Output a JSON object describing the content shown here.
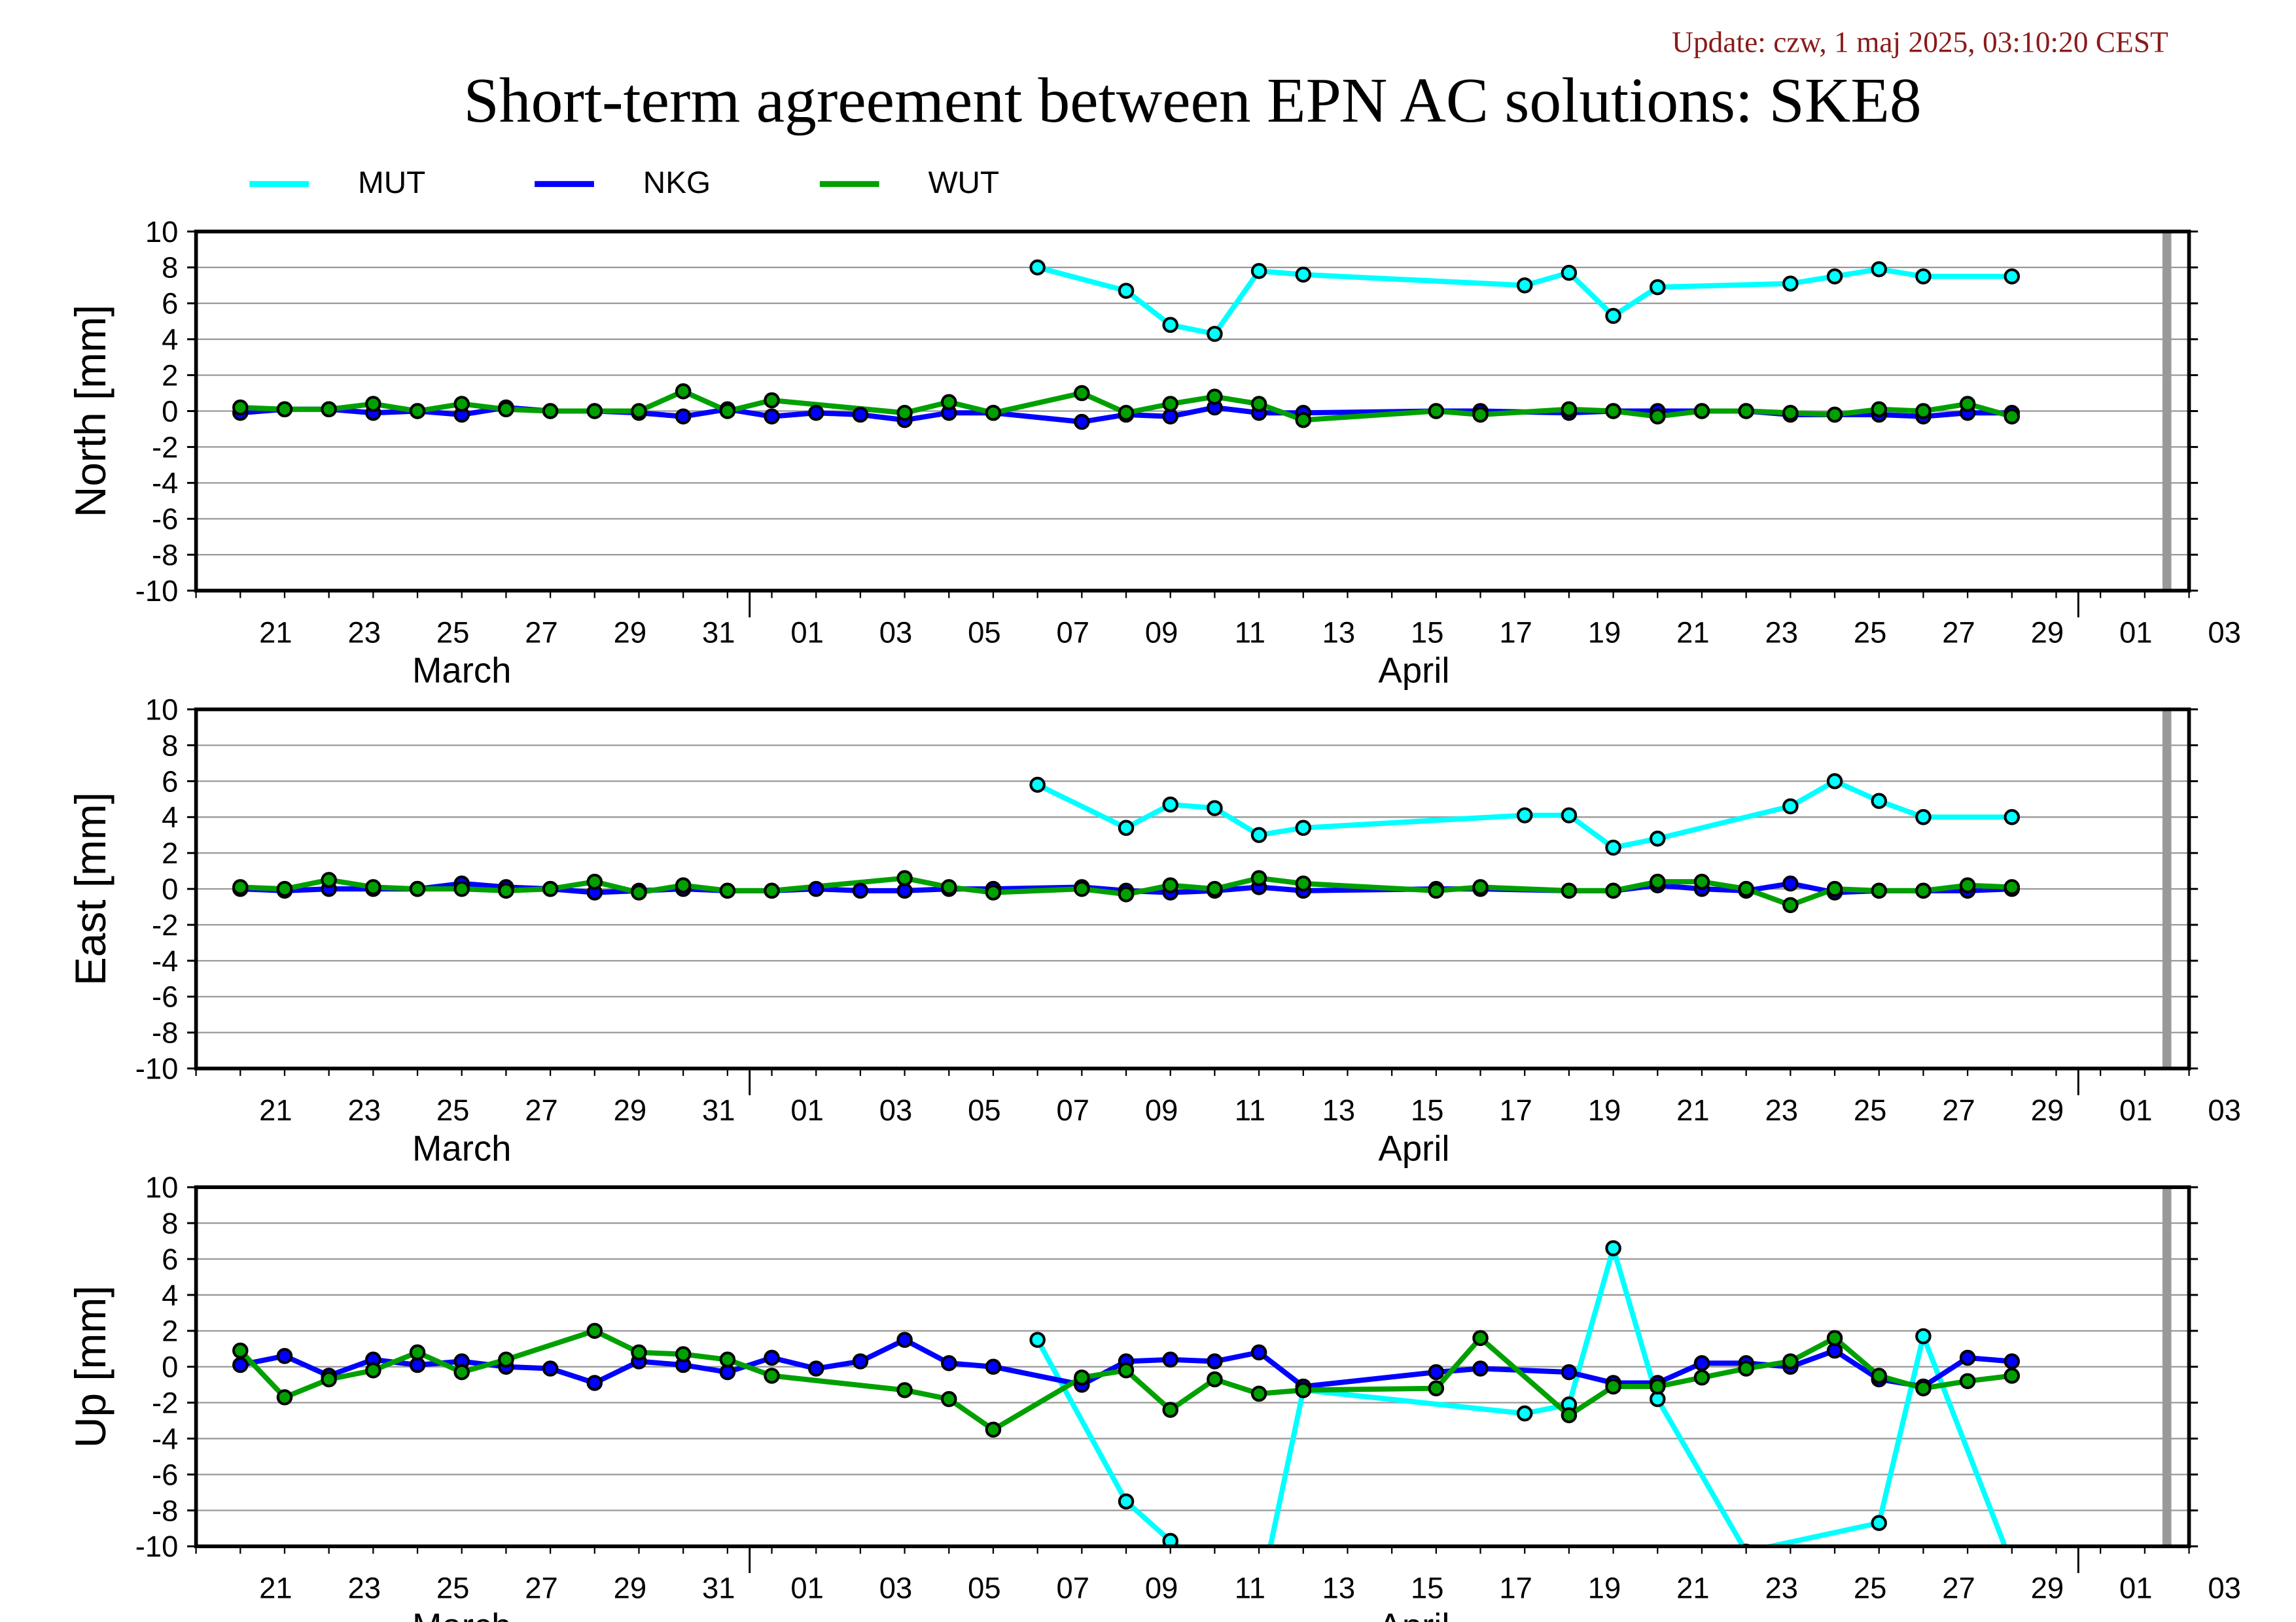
{
  "header": {
    "update": "Update: czw, 1 maj 2025, 03:10:20 CEST",
    "title": "Short-term agreement between EPN AC solutions: SKE8"
  },
  "legend": [
    {
      "name": "MUT",
      "color": "#00ffff"
    },
    {
      "name": "NKG",
      "color": "#0000ff"
    },
    {
      "name": "WUT",
      "color": "#00a000"
    }
  ],
  "colors": {
    "marker_fill": "#40b8ff",
    "gap_bar": "#999999",
    "grid": "#999999"
  },
  "chart_data": [
    {
      "type": "line",
      "ylabel": "North [mm]",
      "ylim": [
        -10,
        10
      ],
      "yticks": [
        "10",
        "8",
        "6",
        "4",
        "2",
        "0",
        "-2",
        "-4",
        "-6",
        "-8",
        "-10"
      ],
      "xdomain_days_from_mar19": [
        0,
        45
      ],
      "x_tick_labels": [
        "21",
        "23",
        "25",
        "27",
        "29",
        "31",
        "01",
        "03",
        "05",
        "07",
        "09",
        "11",
        "13",
        "15",
        "17",
        "19",
        "21",
        "23",
        "25",
        "27",
        "29",
        "01",
        "03"
      ],
      "month_labels": [
        "March",
        "April"
      ],
      "series": [
        {
          "name": "MUT",
          "color": "#00ffff",
          "x": [
            "2025-04-07",
            "2025-04-09",
            "2025-04-10",
            "2025-04-11",
            "2025-04-12",
            "2025-04-13",
            "2025-04-18",
            "2025-04-19",
            "2025-04-20",
            "2025-04-21",
            "2025-04-24",
            "2025-04-25",
            "2025-04-26",
            "2025-04-27",
            "2025-04-29"
          ],
          "y": [
            8.0,
            6.7,
            4.8,
            4.3,
            7.8,
            7.6,
            7.0,
            7.7,
            5.3,
            6.9,
            7.1,
            7.5,
            7.9,
            7.5,
            7.5
          ]
        },
        {
          "name": "NKG",
          "color": "#0000ff",
          "x": [
            "2025-03-20",
            "2025-03-21",
            "2025-03-22",
            "2025-03-23",
            "2025-03-24",
            "2025-03-25",
            "2025-03-26",
            "2025-03-27",
            "2025-03-28",
            "2025-03-29",
            "2025-03-30",
            "2025-03-31",
            "2025-04-01",
            "2025-04-02",
            "2025-04-03",
            "2025-04-04",
            "2025-04-05",
            "2025-04-06",
            "2025-04-08",
            "2025-04-09",
            "2025-04-10",
            "2025-04-11",
            "2025-04-12",
            "2025-04-13",
            "2025-04-16",
            "2025-04-17",
            "2025-04-19",
            "2025-04-20",
            "2025-04-21",
            "2025-04-22",
            "2025-04-23",
            "2025-04-24",
            "2025-04-25",
            "2025-04-26",
            "2025-04-27",
            "2025-04-28",
            "2025-04-29"
          ],
          "y": [
            -0.1,
            0.1,
            0.1,
            -0.1,
            0.0,
            -0.2,
            0.2,
            0.0,
            0.0,
            -0.1,
            -0.3,
            0.1,
            -0.3,
            -0.1,
            -0.2,
            -0.5,
            -0.1,
            -0.1,
            -0.6,
            -0.2,
            -0.3,
            0.2,
            -0.1,
            -0.1,
            0.0,
            0.0,
            -0.1,
            0.0,
            0.0,
            0.0,
            0.0,
            -0.2,
            -0.2,
            -0.2,
            -0.3,
            -0.1,
            -0.1
          ]
        },
        {
          "name": "WUT",
          "color": "#00a000",
          "x": [
            "2025-03-20",
            "2025-03-21",
            "2025-03-22",
            "2025-03-23",
            "2025-03-24",
            "2025-03-25",
            "2025-03-26",
            "2025-03-27",
            "2025-03-28",
            "2025-03-29",
            "2025-03-30",
            "2025-03-31",
            "2025-04-01",
            "2025-04-04",
            "2025-04-05",
            "2025-04-06",
            "2025-04-08",
            "2025-04-09",
            "2025-04-10",
            "2025-04-11",
            "2025-04-12",
            "2025-04-13",
            "2025-04-16",
            "2025-04-17",
            "2025-04-19",
            "2025-04-20",
            "2025-04-21",
            "2025-04-22",
            "2025-04-23",
            "2025-04-24",
            "2025-04-25",
            "2025-04-26",
            "2025-04-27",
            "2025-04-28",
            "2025-04-29"
          ],
          "y": [
            0.2,
            0.1,
            0.1,
            0.4,
            0.0,
            0.4,
            0.1,
            0.0,
            0.0,
            0.0,
            1.1,
            0.0,
            0.6,
            -0.1,
            0.5,
            -0.1,
            1.0,
            -0.1,
            0.4,
            0.8,
            0.4,
            -0.5,
            0.0,
            -0.2,
            0.1,
            0.0,
            -0.3,
            0.0,
            0.0,
            -0.1,
            -0.2,
            0.1,
            0.0,
            0.4,
            -0.3
          ]
        }
      ]
    },
    {
      "type": "line",
      "ylabel": "East [mm]",
      "ylim": [
        -10,
        10
      ],
      "yticks": [
        "10",
        "8",
        "6",
        "4",
        "2",
        "0",
        "-2",
        "-4",
        "-6",
        "-8",
        "-10"
      ],
      "xdomain_days_from_mar19": [
        0,
        45
      ],
      "x_tick_labels": [
        "21",
        "23",
        "25",
        "27",
        "29",
        "31",
        "01",
        "03",
        "05",
        "07",
        "09",
        "11",
        "13",
        "15",
        "17",
        "19",
        "21",
        "23",
        "25",
        "27",
        "29",
        "01",
        "03"
      ],
      "month_labels": [
        "March",
        "April"
      ],
      "series": [
        {
          "name": "MUT",
          "color": "#00ffff",
          "x": [
            "2025-04-07",
            "2025-04-09",
            "2025-04-10",
            "2025-04-11",
            "2025-04-12",
            "2025-04-13",
            "2025-04-18",
            "2025-04-19",
            "2025-04-20",
            "2025-04-21",
            "2025-04-24",
            "2025-04-25",
            "2025-04-26",
            "2025-04-27",
            "2025-04-29"
          ],
          "y": [
            5.8,
            3.4,
            4.7,
            4.5,
            3.0,
            3.4,
            4.1,
            4.1,
            2.3,
            2.8,
            4.6,
            6.0,
            4.9,
            4.0,
            4.0
          ]
        },
        {
          "name": "NKG",
          "color": "#0000ff",
          "x": [
            "2025-03-20",
            "2025-03-21",
            "2025-03-22",
            "2025-03-23",
            "2025-03-24",
            "2025-03-25",
            "2025-03-26",
            "2025-03-27",
            "2025-03-28",
            "2025-03-29",
            "2025-03-30",
            "2025-03-31",
            "2025-04-01",
            "2025-04-02",
            "2025-04-03",
            "2025-04-04",
            "2025-04-05",
            "2025-04-06",
            "2025-04-08",
            "2025-04-09",
            "2025-04-10",
            "2025-04-11",
            "2025-04-12",
            "2025-04-13",
            "2025-04-16",
            "2025-04-17",
            "2025-04-19",
            "2025-04-20",
            "2025-04-21",
            "2025-04-22",
            "2025-04-23",
            "2025-04-24",
            "2025-04-25",
            "2025-04-26",
            "2025-04-27",
            "2025-04-28",
            "2025-04-29"
          ],
          "y": [
            0.0,
            -0.1,
            0.0,
            0.0,
            0.0,
            0.3,
            0.1,
            0.0,
            -0.2,
            -0.1,
            0.0,
            -0.1,
            -0.1,
            0.0,
            -0.1,
            -0.1,
            0.0,
            0.0,
            0.1,
            -0.1,
            -0.2,
            -0.1,
            0.1,
            -0.1,
            0.0,
            0.0,
            -0.1,
            -0.1,
            0.2,
            0.0,
            -0.1,
            0.3,
            -0.2,
            -0.1,
            -0.1,
            -0.1,
            0.0
          ]
        },
        {
          "name": "WUT",
          "color": "#00a000",
          "x": [
            "2025-03-20",
            "2025-03-21",
            "2025-03-22",
            "2025-03-23",
            "2025-03-24",
            "2025-03-25",
            "2025-03-26",
            "2025-03-27",
            "2025-03-28",
            "2025-03-29",
            "2025-03-30",
            "2025-03-31",
            "2025-04-01",
            "2025-04-04",
            "2025-04-05",
            "2025-04-06",
            "2025-04-08",
            "2025-04-09",
            "2025-04-10",
            "2025-04-11",
            "2025-04-12",
            "2025-04-13",
            "2025-04-16",
            "2025-04-17",
            "2025-04-19",
            "2025-04-20",
            "2025-04-21",
            "2025-04-22",
            "2025-04-23",
            "2025-04-24",
            "2025-04-25",
            "2025-04-26",
            "2025-04-27",
            "2025-04-28",
            "2025-04-29"
          ],
          "y": [
            0.1,
            0.0,
            0.5,
            0.1,
            0.0,
            0.0,
            -0.1,
            0.0,
            0.4,
            -0.2,
            0.2,
            -0.1,
            -0.1,
            0.6,
            0.1,
            -0.2,
            0.0,
            -0.3,
            0.2,
            0.0,
            0.6,
            0.3,
            -0.1,
            0.1,
            -0.1,
            -0.1,
            0.4,
            0.4,
            0.0,
            -0.9,
            0.0,
            -0.1,
            -0.1,
            0.2,
            0.1
          ]
        }
      ]
    },
    {
      "type": "line",
      "ylabel": "Up [mm]",
      "ylim": [
        -10,
        10
      ],
      "yticks": [
        "10",
        "8",
        "6",
        "4",
        "2",
        "0",
        "-2",
        "-4",
        "-6",
        "-8",
        "-10"
      ],
      "xdomain_days_from_mar19": [
        0,
        45
      ],
      "x_tick_labels": [
        "21",
        "23",
        "25",
        "27",
        "29",
        "31",
        "01",
        "03",
        "05",
        "07",
        "09",
        "11",
        "13",
        "15",
        "17",
        "19",
        "21",
        "23",
        "25",
        "27",
        "29",
        "01",
        "03"
      ],
      "month_labels": [
        "March",
        "April"
      ],
      "series": [
        {
          "name": "MUT",
          "color": "#00ffff",
          "x": [
            "2025-04-07",
            "2025-04-09",
            "2025-04-10",
            "2025-04-12",
            "2025-04-13",
            "2025-04-18",
            "2025-04-19",
            "2025-04-20",
            "2025-04-21",
            "2025-04-23",
            "2025-04-26",
            "2025-04-27",
            "2025-04-29"
          ],
          "y": [
            1.5,
            -7.5,
            -9.7,
            -13.0,
            -1.3,
            -2.6,
            -2.1,
            6.6,
            -1.8,
            -10.3,
            -8.7,
            1.7,
            -11.0
          ]
        },
        {
          "name": "NKG",
          "color": "#0000ff",
          "x": [
            "2025-03-20",
            "2025-03-21",
            "2025-03-22",
            "2025-03-23",
            "2025-03-24",
            "2025-03-25",
            "2025-03-26",
            "2025-03-27",
            "2025-03-28",
            "2025-03-29",
            "2025-03-30",
            "2025-03-31",
            "2025-04-01",
            "2025-04-02",
            "2025-04-03",
            "2025-04-04",
            "2025-04-05",
            "2025-04-06",
            "2025-04-08",
            "2025-04-09",
            "2025-04-10",
            "2025-04-11",
            "2025-04-12",
            "2025-04-13",
            "2025-04-16",
            "2025-04-17",
            "2025-04-19",
            "2025-04-20",
            "2025-04-21",
            "2025-04-22",
            "2025-04-23",
            "2025-04-24",
            "2025-04-25",
            "2025-04-26",
            "2025-04-27",
            "2025-04-28",
            "2025-04-29"
          ],
          "y": [
            0.1,
            0.6,
            -0.5,
            0.4,
            0.1,
            0.3,
            0.0,
            -0.1,
            -0.9,
            0.3,
            0.1,
            -0.3,
            0.5,
            -0.1,
            0.3,
            1.5,
            0.2,
            0.0,
            -1.0,
            0.3,
            0.4,
            0.3,
            0.8,
            -1.1,
            -0.3,
            -0.1,
            -0.3,
            -0.9,
            -0.9,
            0.2,
            0.2,
            0.0,
            0.9,
            -0.7,
            -1.1,
            0.5,
            0.3
          ]
        },
        {
          "name": "WUT",
          "color": "#00a000",
          "x": [
            "2025-03-20",
            "2025-03-21",
            "2025-03-22",
            "2025-03-23",
            "2025-03-24",
            "2025-03-25",
            "2025-03-26",
            "2025-03-28",
            "2025-03-29",
            "2025-03-30",
            "2025-03-31",
            "2025-04-01",
            "2025-04-04",
            "2025-04-05",
            "2025-04-06",
            "2025-04-08",
            "2025-04-09",
            "2025-04-10",
            "2025-04-11",
            "2025-04-12",
            "2025-04-13",
            "2025-04-16",
            "2025-04-17",
            "2025-04-19",
            "2025-04-20",
            "2025-04-21",
            "2025-04-22",
            "2025-04-23",
            "2025-04-24",
            "2025-04-25",
            "2025-04-26",
            "2025-04-27",
            "2025-04-28",
            "2025-04-29"
          ],
          "y": [
            0.9,
            -1.7,
            -0.7,
            -0.2,
            0.8,
            -0.3,
            0.4,
            2.0,
            0.8,
            0.7,
            0.4,
            -0.5,
            -1.3,
            -1.8,
            -3.5,
            -0.6,
            -0.2,
            -2.4,
            -0.7,
            -1.5,
            -1.3,
            -1.2,
            1.6,
            -2.7,
            -1.1,
            -1.1,
            -0.6,
            -0.1,
            0.3,
            1.6,
            -0.5,
            -1.2,
            -0.8,
            -0.5
          ]
        }
      ]
    }
  ]
}
